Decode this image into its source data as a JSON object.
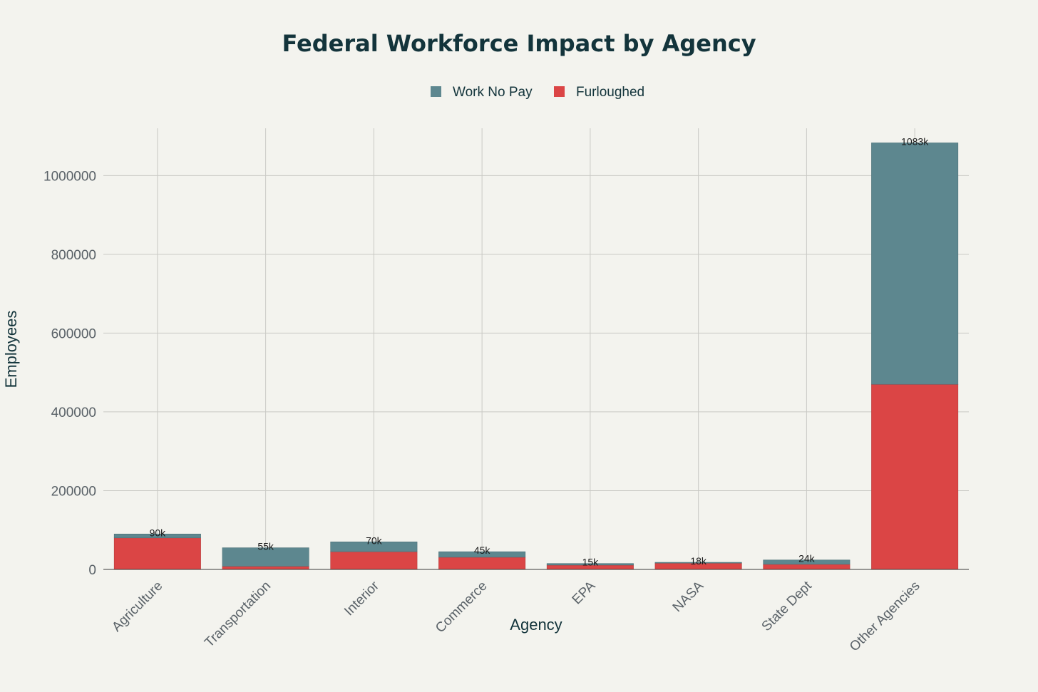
{
  "chart_data": {
    "type": "bar",
    "stacked": true,
    "title": "Federal Workforce Impact by Agency",
    "xlabel": "Agency",
    "ylabel": "Employees",
    "categories": [
      "Agriculture",
      "Transportation",
      "Interior",
      "Commerce",
      "EPA",
      "NASA",
      "State Dept",
      "Other Agencies"
    ],
    "series": [
      {
        "name": "Furloughed",
        "color": "#db4545",
        "values": [
          80000,
          8000,
          45000,
          31000,
          11000,
          16000,
          13000,
          470000
        ]
      },
      {
        "name": "Work No Pay",
        "color": "#5d878f",
        "values": [
          10000,
          47000,
          25000,
          14000,
          4000,
          2000,
          11000,
          613000
        ]
      }
    ],
    "totals_labels": [
      "90k",
      "55k",
      "70k",
      "45k",
      "15k",
      "18k",
      "24k",
      "1083k"
    ],
    "legend_order": [
      "Work No Pay",
      "Furloughed"
    ],
    "legend_position": "top-center",
    "ylim": [
      0,
      1120000
    ],
    "yticks": [
      0,
      200000,
      400000,
      600000,
      800000,
      1000000
    ],
    "ytick_labels": [
      "0",
      "200000",
      "400000",
      "600000",
      "800000",
      "1000000"
    ],
    "grid": true
  }
}
